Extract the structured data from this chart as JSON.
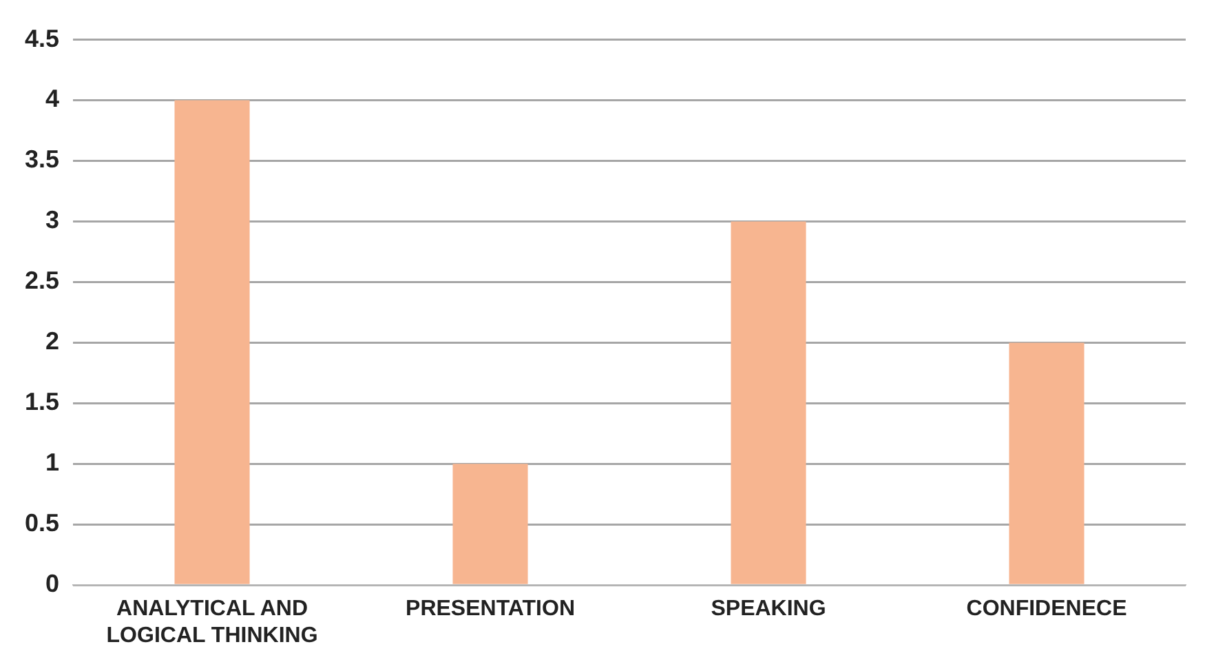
{
  "chart_data": {
    "type": "bar",
    "categories": [
      "ANALYTICAL AND LOGICAL THINKING",
      "PRESENTATION",
      "SPEAKING",
      "CONFIDENECE"
    ],
    "values": [
      4,
      1,
      3,
      2
    ],
    "color": "#f7b590",
    "ylim": [
      0,
      4.5
    ],
    "yticks": [
      0,
      0.5,
      1,
      1.5,
      2,
      2.5,
      3,
      3.5,
      4,
      4.5
    ],
    "grid": "y",
    "legend": false
  }
}
